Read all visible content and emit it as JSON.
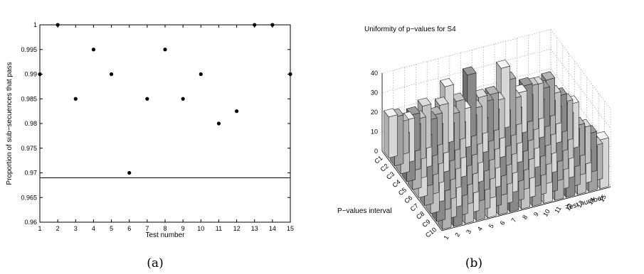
{
  "chart_data": [
    {
      "type": "scatter",
      "panel_label": "(a)",
      "title": "",
      "xlabel": "Test number",
      "ylabel": "Proportion of sub−secuences that pass",
      "xlim": [
        1,
        15
      ],
      "ylim": [
        0.96,
        1.0
      ],
      "x_ticks": [
        "1",
        "2",
        "3",
        "4",
        "5",
        "6",
        "7",
        "8",
        "9",
        "10",
        "11",
        "12",
        "13",
        "14",
        "15"
      ],
      "y_ticks": [
        "0.96",
        "0.965",
        "0.97",
        "0.975",
        "0.98",
        "0.985",
        "0.99",
        "0.995",
        "1"
      ],
      "points": [
        {
          "x": 1,
          "y": 0.99
        },
        {
          "x": 2,
          "y": 1.0
        },
        {
          "x": 3,
          "y": 0.985
        },
        {
          "x": 4,
          "y": 0.995
        },
        {
          "x": 5,
          "y": 0.99
        },
        {
          "x": 6,
          "y": 0.97
        },
        {
          "x": 7,
          "y": 0.985
        },
        {
          "x": 8,
          "y": 0.995
        },
        {
          "x": 9,
          "y": 0.985
        },
        {
          "x": 10,
          "y": 0.99
        },
        {
          "x": 11,
          "y": 0.98
        },
        {
          "x": 12,
          "y": 0.9825
        },
        {
          "x": 13,
          "y": 1.0
        },
        {
          "x": 14,
          "y": 1.0
        },
        {
          "x": 15,
          "y": 0.99
        }
      ],
      "threshold": 0.969,
      "grid": false
    },
    {
      "type": "bar3d",
      "panel_label": "(b)",
      "title": "Uniformity of p−values for S4",
      "xlabel": "Test number",
      "ylabel": "P−values interval",
      "zlim": [
        0,
        40
      ],
      "z_ticks": [
        "0",
        "10",
        "20",
        "30",
        "40"
      ],
      "tests": [
        "1",
        "2",
        "3",
        "4",
        "5",
        "6",
        "7",
        "8",
        "9",
        "10",
        "11",
        "12",
        "13",
        "14",
        "15"
      ],
      "intervals": [
        "C1",
        "C2",
        "C3",
        "C4",
        "C5",
        "C6",
        "C7",
        "C8",
        "C9",
        "C10"
      ],
      "grid": true,
      "values": [
        [
          21,
          25,
          20,
          16,
          20,
          22,
          15,
          19,
          22,
          17
        ],
        [
          17,
          22,
          23,
          27,
          23,
          19,
          20,
          24,
          22,
          22
        ],
        [
          19,
          21,
          16,
          29,
          19,
          21,
          19,
          15,
          22,
          25
        ],
        [
          22,
          19,
          20,
          17,
          20,
          19,
          20,
          25,
          14,
          17
        ],
        [
          16,
          25,
          19,
          20,
          21,
          20,
          21,
          22,
          20,
          21
        ],
        [
          29,
          19,
          18,
          20,
          21,
          16,
          17,
          20,
          25,
          17
        ],
        [
          20,
          20,
          20,
          19,
          15,
          23,
          19,
          22,
          24,
          19
        ],
        [
          32,
          19,
          17,
          19,
          17,
          20,
          18,
          21,
          25,
          20
        ],
        [
          19,
          21,
          20,
          19,
          21,
          19,
          20,
          22,
          21,
          19
        ],
        [
          19,
          20,
          18,
          23,
          20,
          19,
          21,
          25,
          24,
          19
        ],
        [
          31,
          29,
          18,
          18,
          19,
          20,
          17,
          20,
          18,
          19
        ],
        [
          14,
          21,
          23,
          21,
          18,
          17,
          19,
          20,
          24,
          21
        ],
        [
          19,
          23,
          19,
          20,
          21,
          23,
          19,
          21,
          20,
          18
        ],
        [
          18,
          20,
          17,
          18,
          24,
          23,
          19,
          24,
          16,
          22
        ],
        [
          19,
          16,
          19,
          20,
          23,
          16,
          19,
          20,
          18,
          25
        ]
      ]
    }
  ]
}
